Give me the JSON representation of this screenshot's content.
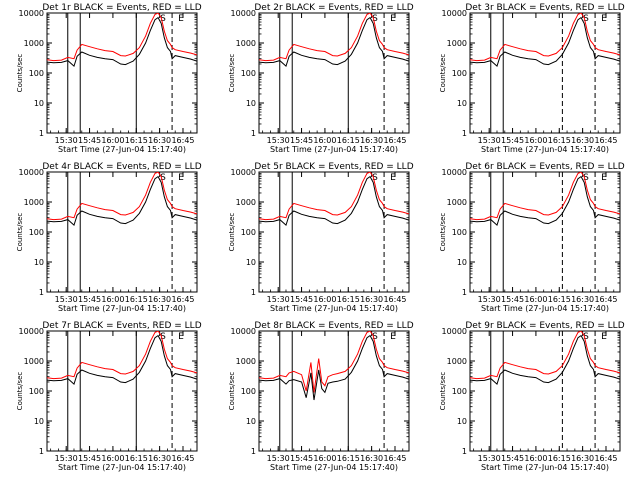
{
  "figure": {
    "x_axis_label": "Start Time (27-Jun-04 15:17:40)",
    "y_axis_label": "Counts/sec",
    "x_tick_labels": [
      "15:30",
      "15:45",
      "16:00",
      "16:15",
      "16:30",
      "16:45"
    ],
    "y_tick_labels": [
      "1",
      "10",
      "100",
      "1000",
      "10000"
    ],
    "colors": {
      "events": "#000000",
      "lld": "#ff0000",
      "axes": "#000000"
    }
  },
  "chart_data": [
    {
      "type": "line",
      "title": "Det 1r BLACK = Events, RED = LLD",
      "xlabel": "Start Time (27-Jun-04 15:17:40)",
      "ylabel": "Counts/sec",
      "ylog": true,
      "ylim": [
        1,
        10000
      ],
      "xlim": [
        "15:17:40",
        "16:54"
      ],
      "solid_markers": [
        "15:31",
        "15:39",
        "16:15"
      ],
      "dashed_markers": [
        "16:38"
      ],
      "corner_labels": [
        "S",
        "E"
      ],
      "x": [
        "15:17",
        "15:22",
        "15:27",
        "15:31",
        "15:35",
        "15:37",
        "15:40",
        "15:45",
        "15:50",
        "15:55",
        "16:00",
        "16:05",
        "16:08",
        "16:13",
        "16:17",
        "16:21",
        "16:24",
        "16:27",
        "16:29",
        "16:31",
        "16:33",
        "16:35",
        "16:37",
        "16:38",
        "16:40",
        "16:45",
        "16:50",
        "16:54"
      ],
      "series": [
        {
          "name": "LLD",
          "values": [
            280,
            260,
            270,
            330,
            300,
            580,
            900,
            750,
            640,
            560,
            520,
            380,
            370,
            450,
            700,
            1700,
            4500,
            9000,
            10000,
            7000,
            2500,
            1200,
            900,
            700,
            600,
            520,
            460,
            400
          ]
        },
        {
          "name": "Events",
          "values": [
            230,
            220,
            225,
            260,
            170,
            360,
            500,
            390,
            330,
            300,
            280,
            200,
            190,
            250,
            420,
            1000,
            2600,
            6000,
            7000,
            4500,
            1500,
            700,
            520,
            300,
            380,
            330,
            290,
            250
          ]
        }
      ]
    },
    {
      "type": "line",
      "title": "Det 2r BLACK = Events, RED = LLD",
      "xlabel": "Start Time (27-Jun-04 15:17:40)",
      "ylabel": "Counts/sec",
      "ylog": true,
      "ylim": [
        1,
        10000
      ],
      "xlim": [
        "15:17:40",
        "16:54"
      ],
      "solid_markers": [
        "15:31",
        "15:39",
        "16:15"
      ],
      "dashed_markers": [
        "16:38"
      ],
      "corner_labels": [
        "S",
        "E"
      ],
      "x": [
        "15:17",
        "15:22",
        "15:27",
        "15:31",
        "15:35",
        "15:37",
        "15:40",
        "15:45",
        "15:50",
        "15:55",
        "16:00",
        "16:05",
        "16:08",
        "16:13",
        "16:17",
        "16:21",
        "16:24",
        "16:27",
        "16:29",
        "16:31",
        "16:33",
        "16:35",
        "16:37",
        "16:38",
        "16:40",
        "16:45",
        "16:50",
        "16:54"
      ],
      "series": [
        {
          "name": "LLD",
          "values": [
            280,
            260,
            270,
            330,
            300,
            580,
            900,
            750,
            640,
            560,
            520,
            380,
            370,
            450,
            700,
            1700,
            4500,
            9000,
            10000,
            7000,
            2500,
            1200,
            900,
            700,
            600,
            520,
            460,
            400
          ]
        },
        {
          "name": "Events",
          "values": [
            230,
            220,
            225,
            260,
            170,
            360,
            500,
            390,
            330,
            300,
            280,
            200,
            190,
            250,
            420,
            1000,
            2600,
            6000,
            7000,
            4500,
            1500,
            700,
            520,
            300,
            380,
            330,
            290,
            250
          ]
        }
      ]
    },
    {
      "type": "line",
      "title": "Det 3r BLACK = Events, RED = LLD",
      "xlabel": "Start Time (27-Jun-04 15:17:40)",
      "ylabel": "Counts/sec",
      "ylog": true,
      "ylim": [
        1,
        10000
      ],
      "xlim": [
        "15:17:40",
        "16:54"
      ],
      "solid_markers": [
        "15:31",
        "15:39"
      ],
      "dashed_markers": [
        "16:17",
        "16:38"
      ],
      "corner_labels": [
        "S",
        "E"
      ],
      "x": [
        "15:17",
        "15:22",
        "15:27",
        "15:31",
        "15:35",
        "15:37",
        "15:40",
        "15:45",
        "15:50",
        "15:55",
        "16:00",
        "16:05",
        "16:08",
        "16:13",
        "16:17",
        "16:21",
        "16:24",
        "16:27",
        "16:29",
        "16:31",
        "16:33",
        "16:35",
        "16:37",
        "16:38",
        "16:40",
        "16:45",
        "16:50",
        "16:54"
      ],
      "series": [
        {
          "name": "LLD",
          "values": [
            280,
            260,
            270,
            330,
            300,
            580,
            900,
            750,
            640,
            560,
            520,
            380,
            370,
            450,
            700,
            1700,
            4500,
            9000,
            10000,
            7000,
            2500,
            1200,
            900,
            700,
            600,
            520,
            460,
            400
          ]
        },
        {
          "name": "Events",
          "values": [
            230,
            220,
            225,
            260,
            170,
            360,
            500,
            390,
            330,
            300,
            280,
            200,
            190,
            250,
            420,
            1000,
            2600,
            6000,
            7000,
            4500,
            1500,
            700,
            520,
            300,
            380,
            330,
            290,
            250
          ]
        }
      ]
    },
    {
      "type": "line",
      "title": "Det 4r BLACK = Events, RED = LLD",
      "xlabel": "Start Time (27-Jun-04 15:17:40)",
      "ylabel": "Counts/sec",
      "ylog": true,
      "ylim": [
        1,
        10000
      ],
      "xlim": [
        "15:17:40",
        "16:54"
      ],
      "solid_markers": [
        "15:31",
        "15:39"
      ],
      "dashed_markers": [
        "16:38"
      ],
      "corner_labels": [
        "S",
        "E"
      ],
      "x": [
        "15:17",
        "15:22",
        "15:27",
        "15:31",
        "15:35",
        "15:37",
        "15:40",
        "15:45",
        "15:50",
        "15:55",
        "16:00",
        "16:05",
        "16:08",
        "16:13",
        "16:17",
        "16:21",
        "16:24",
        "16:27",
        "16:29",
        "16:31",
        "16:33",
        "16:35",
        "16:37",
        "16:38",
        "16:40",
        "16:45",
        "16:50",
        "16:54"
      ],
      "series": [
        {
          "name": "LLD",
          "values": [
            280,
            260,
            270,
            330,
            300,
            580,
            900,
            750,
            640,
            560,
            520,
            380,
            370,
            450,
            700,
            1700,
            4500,
            9000,
            10000,
            7000,
            2500,
            1200,
            900,
            700,
            600,
            520,
            460,
            400
          ]
        },
        {
          "name": "Events",
          "values": [
            230,
            220,
            225,
            260,
            170,
            360,
            500,
            390,
            330,
            300,
            280,
            200,
            190,
            250,
            420,
            1000,
            2600,
            6000,
            7000,
            4500,
            1500,
            700,
            520,
            300,
            380,
            330,
            290,
            250
          ]
        }
      ]
    },
    {
      "type": "line",
      "title": "Det 5r BLACK = Events, RED = LLD",
      "xlabel": "Start Time (27-Jun-04 15:17:40)",
      "ylabel": "Counts/sec",
      "ylog": true,
      "ylim": [
        1,
        10000
      ],
      "xlim": [
        "15:17:40",
        "16:54"
      ],
      "solid_markers": [
        "15:31",
        "15:39"
      ],
      "dashed_markers": [
        "16:38"
      ],
      "corner_labels": [
        "S",
        "E"
      ],
      "x": [
        "15:17",
        "15:22",
        "15:27",
        "15:31",
        "15:35",
        "15:37",
        "15:40",
        "15:45",
        "15:50",
        "15:55",
        "16:00",
        "16:05",
        "16:08",
        "16:13",
        "16:17",
        "16:21",
        "16:24",
        "16:27",
        "16:29",
        "16:31",
        "16:33",
        "16:35",
        "16:37",
        "16:38",
        "16:40",
        "16:45",
        "16:50",
        "16:54"
      ],
      "series": [
        {
          "name": "LLD",
          "values": [
            280,
            260,
            270,
            330,
            300,
            580,
            900,
            750,
            640,
            560,
            520,
            380,
            370,
            450,
            700,
            1700,
            4500,
            9000,
            10000,
            7000,
            2500,
            1200,
            900,
            700,
            600,
            520,
            460,
            400
          ]
        },
        {
          "name": "Events",
          "values": [
            230,
            220,
            225,
            260,
            170,
            360,
            500,
            390,
            330,
            300,
            280,
            200,
            190,
            250,
            420,
            1000,
            2600,
            6000,
            7000,
            4500,
            1500,
            700,
            520,
            300,
            380,
            330,
            290,
            250
          ]
        }
      ]
    },
    {
      "type": "line",
      "title": "Det 6r BLACK = Events, RED = LLD",
      "xlabel": "Start Time (27-Jun-04 15:17:40)",
      "ylabel": "Counts/sec",
      "ylog": true,
      "ylim": [
        1,
        10000
      ],
      "xlim": [
        "15:17:40",
        "16:54"
      ],
      "solid_markers": [
        "15:31",
        "15:39"
      ],
      "dashed_markers": [
        "16:17",
        "16:38"
      ],
      "corner_labels": [
        "S",
        "E"
      ],
      "x": [
        "15:17",
        "15:22",
        "15:27",
        "15:31",
        "15:35",
        "15:37",
        "15:40",
        "15:45",
        "15:50",
        "15:55",
        "16:00",
        "16:05",
        "16:08",
        "16:13",
        "16:17",
        "16:21",
        "16:24",
        "16:27",
        "16:29",
        "16:31",
        "16:33",
        "16:35",
        "16:37",
        "16:38",
        "16:40",
        "16:45",
        "16:50",
        "16:54"
      ],
      "series": [
        {
          "name": "LLD",
          "values": [
            280,
            260,
            270,
            330,
            300,
            580,
            900,
            750,
            640,
            560,
            520,
            380,
            370,
            450,
            700,
            1700,
            4500,
            9000,
            10000,
            7000,
            2500,
            1200,
            900,
            700,
            600,
            520,
            460,
            400
          ]
        },
        {
          "name": "Events",
          "values": [
            230,
            220,
            225,
            260,
            170,
            360,
            500,
            390,
            330,
            300,
            280,
            200,
            190,
            250,
            420,
            1000,
            2600,
            6000,
            7000,
            4500,
            1500,
            700,
            520,
            300,
            380,
            330,
            290,
            250
          ]
        }
      ]
    },
    {
      "type": "line",
      "title": "Det 7r BLACK = Events, RED = LLD",
      "xlabel": "Start Time (27-Jun-04 15:17:40)",
      "ylabel": "Counts/sec",
      "ylog": true,
      "ylim": [
        1,
        10000
      ],
      "xlim": [
        "15:17:40",
        "16:54"
      ],
      "solid_markers": [
        "15:31",
        "15:39",
        "16:15"
      ],
      "dashed_markers": [
        "16:38"
      ],
      "corner_labels": [
        "S",
        "E"
      ],
      "x": [
        "15:17",
        "15:22",
        "15:27",
        "15:31",
        "15:35",
        "15:37",
        "15:40",
        "15:45",
        "15:50",
        "15:55",
        "16:00",
        "16:05",
        "16:08",
        "16:13",
        "16:17",
        "16:21",
        "16:24",
        "16:27",
        "16:29",
        "16:31",
        "16:33",
        "16:35",
        "16:37",
        "16:38",
        "16:40",
        "16:45",
        "16:50",
        "16:54"
      ],
      "series": [
        {
          "name": "LLD",
          "values": [
            280,
            260,
            270,
            330,
            300,
            580,
            900,
            750,
            640,
            560,
            520,
            380,
            370,
            450,
            700,
            1700,
            4500,
            9000,
            10000,
            7000,
            2500,
            1200,
            900,
            700,
            600,
            520,
            460,
            400
          ]
        },
        {
          "name": "Events",
          "values": [
            230,
            220,
            225,
            260,
            170,
            360,
            500,
            390,
            330,
            300,
            280,
            200,
            190,
            250,
            420,
            1000,
            2600,
            6000,
            7000,
            4500,
            1500,
            700,
            520,
            300,
            380,
            330,
            290,
            250
          ]
        }
      ]
    },
    {
      "type": "line",
      "title": "Det 8r BLACK = Events, RED = LLD",
      "xlabel": "Start Time (27-Jun-04 15:17:40)",
      "ylabel": "Counts/sec",
      "ylog": true,
      "ylim": [
        1,
        10000
      ],
      "xlim": [
        "15:17:40",
        "16:54"
      ],
      "solid_markers": [
        "15:31",
        "15:39",
        "16:15"
      ],
      "dashed_markers": [
        "16:38"
      ],
      "corner_labels": [
        "S",
        "E"
      ],
      "x": [
        "15:17",
        "15:22",
        "15:27",
        "15:31",
        "15:35",
        "15:37",
        "15:40",
        "15:45",
        "15:48",
        "15:51",
        "15:53",
        "15:56",
        "15:58",
        "16:00",
        "16:02",
        "16:05",
        "16:08",
        "16:13",
        "16:17",
        "16:21",
        "16:24",
        "16:27",
        "16:29",
        "16:31",
        "16:33",
        "16:35",
        "16:37",
        "16:38",
        "16:40",
        "16:45",
        "16:50",
        "16:54"
      ],
      "series": [
        {
          "name": "LLD",
          "values": [
            280,
            260,
            270,
            330,
            300,
            400,
            450,
            350,
            100,
            900,
            90,
            1200,
            200,
            150,
            300,
            350,
            380,
            450,
            700,
            1700,
            4500,
            9000,
            10000,
            7000,
            2500,
            1200,
            900,
            700,
            600,
            520,
            460,
            400
          ]
        },
        {
          "name": "Events",
          "values": [
            230,
            220,
            225,
            260,
            170,
            220,
            240,
            200,
            60,
            400,
            50,
            500,
            120,
            90,
            180,
            200,
            210,
            250,
            420,
            1000,
            2600,
            6000,
            7000,
            4500,
            1500,
            700,
            520,
            300,
            380,
            330,
            290,
            250
          ]
        }
      ]
    },
    {
      "type": "line",
      "title": "Det 9r BLACK = Events, RED = LLD",
      "xlabel": "Start Time (27-Jun-04 15:17:40)",
      "ylabel": "Counts/sec",
      "ylog": true,
      "ylim": [
        1,
        10000
      ],
      "xlim": [
        "15:17:40",
        "16:54"
      ],
      "solid_markers": [
        "15:31",
        "15:39"
      ],
      "dashed_markers": [
        "16:17",
        "16:38"
      ],
      "corner_labels": [
        "S",
        "E"
      ],
      "x": [
        "15:17",
        "15:22",
        "15:27",
        "15:31",
        "15:35",
        "15:37",
        "15:40",
        "15:45",
        "15:50",
        "15:55",
        "16:00",
        "16:05",
        "16:08",
        "16:13",
        "16:17",
        "16:21",
        "16:24",
        "16:27",
        "16:29",
        "16:31",
        "16:33",
        "16:35",
        "16:37",
        "16:38",
        "16:40",
        "16:45",
        "16:50",
        "16:54"
      ],
      "series": [
        {
          "name": "LLD",
          "values": [
            280,
            260,
            270,
            330,
            300,
            580,
            900,
            750,
            640,
            560,
            520,
            380,
            370,
            450,
            700,
            1700,
            4500,
            9000,
            10000,
            7000,
            2500,
            1200,
            900,
            700,
            600,
            520,
            460,
            400
          ]
        },
        {
          "name": "Events",
          "values": [
            230,
            220,
            225,
            260,
            170,
            360,
            500,
            390,
            330,
            300,
            280,
            200,
            190,
            250,
            420,
            1000,
            2600,
            6000,
            7000,
            4500,
            1500,
            700,
            520,
            300,
            380,
            330,
            290,
            250
          ]
        }
      ]
    }
  ]
}
